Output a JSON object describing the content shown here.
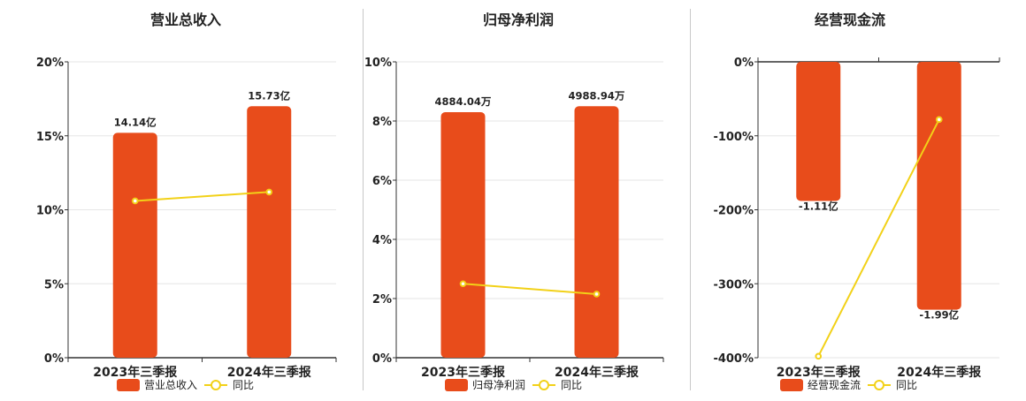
{
  "colors": {
    "bar": "#e84c1b",
    "line": "#f2d118",
    "grid": "#e6e6e6",
    "axis": "#333333"
  },
  "legend": {
    "line_label": "同比"
  },
  "chart_data": [
    {
      "type": "bar",
      "title": "营业总收入",
      "categories": [
        "2023年三季报",
        "2024年三季报"
      ],
      "ylim": [
        0,
        20
      ],
      "ytick_labels": [
        "0%",
        "5%",
        "10%",
        "15%",
        "20%"
      ],
      "series": [
        {
          "name": "营业总收入",
          "type": "bar",
          "values": [
            15.2,
            17.0
          ],
          "labels": [
            "14.14亿",
            "15.73亿"
          ]
        },
        {
          "name": "同比",
          "type": "line",
          "values": [
            10.6,
            11.2
          ]
        }
      ],
      "grid": true,
      "legend": "bottom-center"
    },
    {
      "type": "bar",
      "title": "归母净利润",
      "categories": [
        "2023年三季报",
        "2024年三季报"
      ],
      "ylim": [
        0,
        10
      ],
      "ytick_labels": [
        "0%",
        "2%",
        "4%",
        "6%",
        "8%",
        "10%"
      ],
      "series": [
        {
          "name": "归母净利润",
          "type": "bar",
          "values": [
            8.3,
            8.5
          ],
          "labels": [
            "4884.04万",
            "4988.94万"
          ]
        },
        {
          "name": "同比",
          "type": "line",
          "values": [
            2.5,
            2.15
          ]
        }
      ],
      "grid": true,
      "legend": "bottom-center"
    },
    {
      "type": "bar",
      "title": "经营现金流",
      "categories": [
        "2023年三季报",
        "2024年三季报"
      ],
      "ylim": [
        -400,
        0
      ],
      "ytick_labels": [
        "0%",
        "-100%",
        "-200%",
        "-300%",
        "-400%"
      ],
      "series": [
        {
          "name": "经营现金流",
          "type": "bar",
          "values": [
            -188,
            -335
          ],
          "labels": [
            "-1.11亿",
            "-1.99亿"
          ]
        },
        {
          "name": "同比",
          "type": "line",
          "values": [
            -398,
            -78
          ]
        }
      ],
      "grid": true,
      "legend": "bottom-center"
    }
  ]
}
